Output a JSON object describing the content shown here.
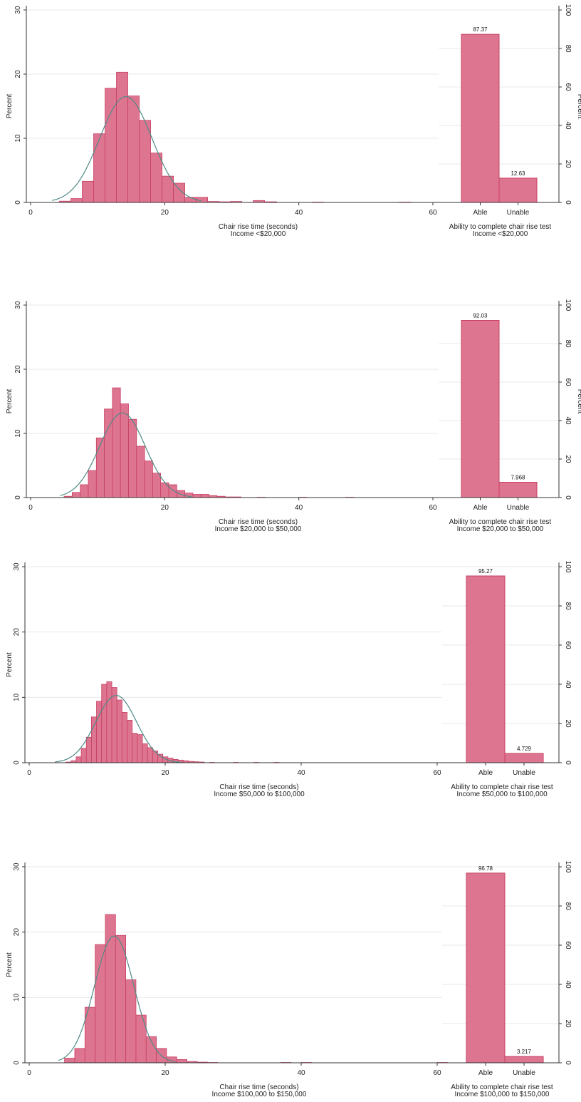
{
  "chart_data": [
    {
      "type": "bar",
      "title": "",
      "histogram": {
        "xlabel": "Chair rise time (seconds)",
        "subtitle": "Income <$20,000",
        "ylabel": "Percent",
        "xlim": [
          0,
          60
        ],
        "ylim": [
          0,
          30
        ],
        "xticks": [
          "0",
          "20",
          "40",
          "60"
        ],
        "yticks": [
          "0",
          "10",
          "20",
          "30"
        ],
        "bin_width": 1.7,
        "bins": [
          {
            "x": 4.3,
            "value": 0.2
          },
          {
            "x": 6.0,
            "value": 0.6
          },
          {
            "x": 7.7,
            "value": 3.3
          },
          {
            "x": 9.4,
            "value": 10.7
          },
          {
            "x": 11.1,
            "value": 17.8
          },
          {
            "x": 12.8,
            "value": 20.3
          },
          {
            "x": 14.5,
            "value": 16.6
          },
          {
            "x": 16.2,
            "value": 12.8
          },
          {
            "x": 17.9,
            "value": 7.7
          },
          {
            "x": 19.6,
            "value": 4.1
          },
          {
            "x": 21.3,
            "value": 3.0
          },
          {
            "x": 23.0,
            "value": 0.8
          },
          {
            "x": 24.7,
            "value": 0.8
          },
          {
            "x": 26.4,
            "value": 0.15
          },
          {
            "x": 28.1,
            "value": 0.1
          },
          {
            "x": 29.8,
            "value": 0.15
          },
          {
            "x": 33.2,
            "value": 0.3
          },
          {
            "x": 35.0,
            "value": 0.1
          },
          {
            "x": 42.0,
            "value": 0.05
          },
          {
            "x": 55.0,
            "value": 0.05
          }
        ],
        "normal_curve": {
          "mean": 14.2,
          "sd": 3.9,
          "peak": 16.5,
          "from": 3.2,
          "to": 25.5
        }
      },
      "bars": {
        "xlabel": "Ability to complete chair rise test",
        "subtitle": "Income <$20,000",
        "ylabel": "Percent",
        "ylim": [
          0,
          100
        ],
        "yticks": [
          "0",
          "20",
          "40",
          "60",
          "80",
          "100"
        ],
        "categories": [
          "Able",
          "Unable"
        ],
        "values": [
          87.37,
          12.63
        ],
        "labels": [
          "87.37",
          "12.63"
        ]
      }
    },
    {
      "type": "bar",
      "title": "",
      "histogram": {
        "xlabel": "Chair rise time (seconds)",
        "subtitle": "Income $20,000 to $50,000",
        "ylabel": "Percent",
        "xlim": [
          0,
          60
        ],
        "ylim": [
          0,
          30
        ],
        "xticks": [
          "0",
          "20",
          "40",
          "60"
        ],
        "yticks": [
          "0",
          "10",
          "20",
          "30"
        ],
        "bin_width": 1.2,
        "bins": [
          {
            "x": 5.0,
            "value": 0.2
          },
          {
            "x": 6.2,
            "value": 0.8
          },
          {
            "x": 7.4,
            "value": 2.0
          },
          {
            "x": 8.6,
            "value": 4.2
          },
          {
            "x": 9.8,
            "value": 9.3
          },
          {
            "x": 11.0,
            "value": 13.8
          },
          {
            "x": 12.2,
            "value": 17.1
          },
          {
            "x": 13.4,
            "value": 14.6
          },
          {
            "x": 14.6,
            "value": 12.2
          },
          {
            "x": 15.8,
            "value": 8.0
          },
          {
            "x": 17.0,
            "value": 5.7
          },
          {
            "x": 18.2,
            "value": 3.8
          },
          {
            "x": 19.4,
            "value": 2.3
          },
          {
            "x": 20.6,
            "value": 2.0
          },
          {
            "x": 21.8,
            "value": 1.1
          },
          {
            "x": 23.0,
            "value": 0.7
          },
          {
            "x": 24.2,
            "value": 0.5
          },
          {
            "x": 25.4,
            "value": 0.5
          },
          {
            "x": 26.6,
            "value": 0.3
          },
          {
            "x": 27.8,
            "value": 0.2
          },
          {
            "x": 29.0,
            "value": 0.1
          },
          {
            "x": 30.2,
            "value": 0.1
          },
          {
            "x": 33.8,
            "value": 0.05
          },
          {
            "x": 40.0,
            "value": 0.05
          },
          {
            "x": 47.0,
            "value": 0.05
          }
        ],
        "normal_curve": {
          "mean": 13.7,
          "sd": 3.4,
          "peak": 13.2,
          "from": 4.4,
          "to": 24.0
        }
      },
      "bars": {
        "xlabel": "Ability to complete chair rise test",
        "subtitle": "Income $20,000 to $50,000",
        "ylabel": "Percent",
        "ylim": [
          0,
          100
        ],
        "yticks": [
          "0",
          "20",
          "40",
          "60",
          "80",
          "100"
        ],
        "categories": [
          "Able",
          "Unable"
        ],
        "values": [
          92.03,
          7.968
        ],
        "labels": [
          "92.03",
          "7.968"
        ]
      }
    },
    {
      "type": "bar",
      "title": "",
      "histogram": {
        "xlabel": "Chair rise time (seconds)",
        "subtitle": "Income $50,000 to $100,000",
        "ylabel": "Percent",
        "xlim": [
          0,
          60
        ],
        "ylim": [
          0,
          30
        ],
        "xticks": [
          "0",
          "20",
          "40",
          "60"
        ],
        "yticks": [
          "0",
          "10",
          "20",
          "30"
        ],
        "bin_width": 0.75,
        "bins": [
          {
            "x": 5.4,
            "value": 0.1
          },
          {
            "x": 6.15,
            "value": 0.3
          },
          {
            "x": 6.9,
            "value": 0.9
          },
          {
            "x": 7.65,
            "value": 2.2
          },
          {
            "x": 8.4,
            "value": 3.9
          },
          {
            "x": 9.15,
            "value": 7.0
          },
          {
            "x": 9.9,
            "value": 9.4
          },
          {
            "x": 10.65,
            "value": 12.0
          },
          {
            "x": 11.4,
            "value": 12.4
          },
          {
            "x": 12.15,
            "value": 11.5
          },
          {
            "x": 12.9,
            "value": 9.6
          },
          {
            "x": 13.65,
            "value": 7.7
          },
          {
            "x": 14.4,
            "value": 6.5
          },
          {
            "x": 15.15,
            "value": 4.5
          },
          {
            "x": 15.9,
            "value": 4.3
          },
          {
            "x": 16.65,
            "value": 2.9
          },
          {
            "x": 17.4,
            "value": 2.3
          },
          {
            "x": 18.15,
            "value": 1.8
          },
          {
            "x": 18.9,
            "value": 1.3
          },
          {
            "x": 19.65,
            "value": 0.9
          },
          {
            "x": 20.4,
            "value": 0.7
          },
          {
            "x": 21.15,
            "value": 0.5
          },
          {
            "x": 21.9,
            "value": 0.4
          },
          {
            "x": 22.65,
            "value": 0.3
          },
          {
            "x": 23.4,
            "value": 0.2
          },
          {
            "x": 24.15,
            "value": 0.15
          },
          {
            "x": 25.0,
            "value": 0.1
          },
          {
            "x": 26.5,
            "value": 0.05
          },
          {
            "x": 30.0,
            "value": 0.05
          },
          {
            "x": 33.0,
            "value": 0.05
          },
          {
            "x": 36.0,
            "value": 0.05
          }
        ],
        "normal_curve": {
          "mean": 12.8,
          "sd": 3.0,
          "peak": 10.3,
          "from": 3.8,
          "to": 22.5
        }
      },
      "bars": {
        "xlabel": "Ability to complete chair rise test",
        "subtitle": "Income $50,000 to $100,000",
        "ylabel": "",
        "ylim": [
          0,
          100
        ],
        "yticks": [
          "0",
          "20",
          "40",
          "60",
          "80",
          "100"
        ],
        "categories": [
          "Able",
          "Unable"
        ],
        "values": [
          95.27,
          4.729
        ],
        "labels": [
          "95.27",
          "4.729"
        ]
      }
    },
    {
      "type": "bar",
      "title": "",
      "histogram": {
        "xlabel": "Chair rise time (seconds)",
        "subtitle": "Income $100,000 to $150,000",
        "ylabel": "Percent",
        "xlim": [
          0,
          60
        ],
        "ylim": [
          0,
          30
        ],
        "xticks": [
          "0",
          "20",
          "40",
          "60"
        ],
        "yticks": [
          "0",
          "10",
          "20",
          "30"
        ],
        "bin_width": 1.5,
        "bins": [
          {
            "x": 5.2,
            "value": 0.7
          },
          {
            "x": 6.7,
            "value": 2.2
          },
          {
            "x": 8.2,
            "value": 8.5
          },
          {
            "x": 9.7,
            "value": 18.1
          },
          {
            "x": 11.2,
            "value": 22.7
          },
          {
            "x": 12.7,
            "value": 19.5
          },
          {
            "x": 14.2,
            "value": 12.7
          },
          {
            "x": 15.7,
            "value": 7.3
          },
          {
            "x": 17.2,
            "value": 4.0
          },
          {
            "x": 18.7,
            "value": 2.2
          },
          {
            "x": 20.2,
            "value": 0.9
          },
          {
            "x": 21.7,
            "value": 0.5
          },
          {
            "x": 23.2,
            "value": 0.2
          },
          {
            "x": 24.7,
            "value": 0.1
          },
          {
            "x": 26.2,
            "value": 0.05
          },
          {
            "x": 37.0,
            "value": 0.05
          },
          {
            "x": 40.0,
            "value": 0.05
          },
          {
            "x": 60.0,
            "value": 0.05
          }
        ],
        "normal_curve": {
          "mean": 12.5,
          "sd": 2.9,
          "peak": 19.4,
          "from": 4.3,
          "to": 21.5
        }
      },
      "bars": {
        "xlabel": "Ability to complete chair rise test",
        "subtitle": "Income $100,000 to $150,000",
        "ylabel": "",
        "ylim": [
          0,
          100
        ],
        "yticks": [
          "0",
          "20",
          "40",
          "60",
          "80",
          "100"
        ],
        "categories": [
          "Able",
          "Unable"
        ],
        "values": [
          96.78,
          3.217
        ],
        "labels": [
          "96.78",
          "3.217"
        ]
      }
    }
  ],
  "colors": {
    "bar_fill": "#de7590",
    "bar_stroke": "#c73f63",
    "curve": "#4f8a86",
    "grid": "#eaeaea",
    "axis": "#333333"
  }
}
